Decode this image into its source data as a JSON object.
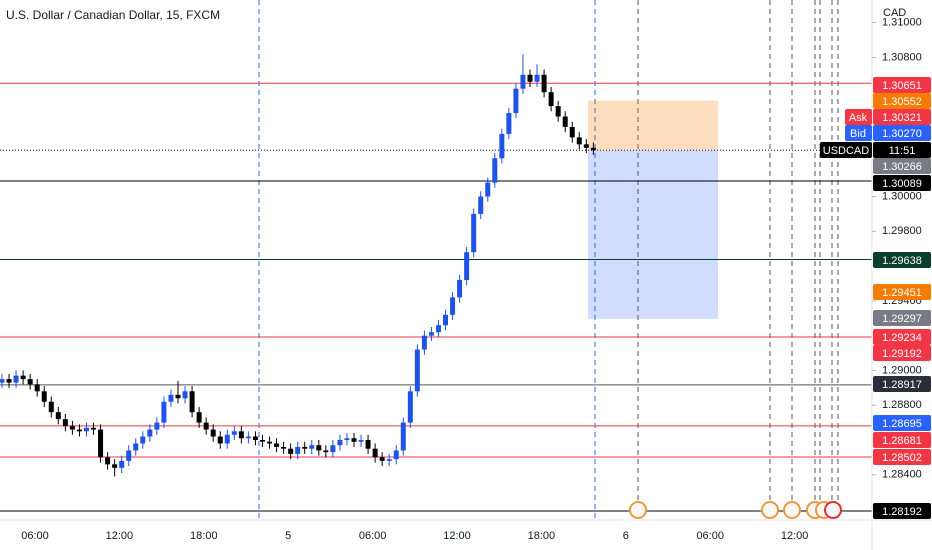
{
  "chart_data": {
    "type": "candlestick",
    "title": "U.S. Dollar / Canadian Dollar, 15, FXCM",
    "currency": "CAD",
    "up_color": "#1e53e5",
    "down_color": "#000000",
    "ylim": [
      1.2814,
      1.3113
    ],
    "yticks": [
      {
        "value": 1.31,
        "label": "1.31000"
      },
      {
        "value": 1.308,
        "label": "1.30800"
      },
      {
        "value": 1.3,
        "label": "1.30000"
      },
      {
        "value": 1.298,
        "label": "1.29800"
      },
      {
        "value": 1.294,
        "label": "1.29400"
      },
      {
        "value": 1.29,
        "label": "1.29000"
      },
      {
        "value": 1.288,
        "label": "1.28800"
      },
      {
        "value": 1.284,
        "label": "1.28400"
      }
    ],
    "xlabels": [
      "06:00",
      "12:00",
      "18:00",
      "5",
      "06:00",
      "12:00",
      "18:00",
      "6",
      "06:00",
      "12:00"
    ],
    "open": [
      1.2893,
      1.2895,
      1.2893,
      1.2897,
      1.2895,
      1.2892,
      1.2888,
      1.2882,
      1.2876,
      1.2872,
      1.2868,
      1.2866,
      1.2865,
      1.2867,
      1.2866,
      1.285,
      1.2846,
      1.2844,
      1.2848,
      1.2854,
      1.2858,
      1.2862,
      1.2866,
      1.287,
      1.2882,
      1.2886,
      1.2884,
      1.2888,
      1.2876,
      1.287,
      1.2866,
      1.2862,
      1.2858,
      1.2863,
      1.2865,
      1.2861,
      1.2862,
      1.286,
      1.2859,
      1.2858,
      1.2856,
      1.2855,
      1.2852,
      1.2856,
      1.2855,
      1.2857,
      1.2854,
      1.2853,
      1.2857,
      1.286,
      1.2861,
      1.2859,
      1.286,
      1.2855,
      1.285,
      1.2848,
      1.2849,
      1.2854,
      1.287,
      1.2888,
      1.2912,
      1.292,
      1.2922,
      1.2926,
      1.2932,
      1.2942,
      1.2952,
      1.2968,
      1.299,
      1.3,
      1.3008,
      1.3022,
      1.3036,
      1.3048,
      1.3062,
      1.307,
      1.3066,
      1.307,
      1.306,
      1.3052,
      1.3046,
      1.304,
      1.3034,
      1.303,
      1.3028
    ],
    "high": [
      1.2898,
      1.2898,
      1.29,
      1.29,
      1.2898,
      1.2895,
      1.2891,
      1.2885,
      1.2879,
      1.2875,
      1.2871,
      1.2869,
      1.287,
      1.287,
      1.2869,
      1.2853,
      1.2849,
      1.2851,
      1.2857,
      1.2861,
      1.2865,
      1.2869,
      1.2873,
      1.2885,
      1.2889,
      1.2894,
      1.2891,
      1.2891,
      1.2879,
      1.2873,
      1.2869,
      1.2865,
      1.2866,
      1.2868,
      1.2868,
      1.2865,
      1.2865,
      1.2863,
      1.2862,
      1.2861,
      1.2859,
      1.2858,
      1.2859,
      1.2859,
      1.286,
      1.286,
      1.2857,
      1.286,
      1.2863,
      1.2864,
      1.2864,
      1.2863,
      1.2863,
      1.2858,
      1.2853,
      1.2852,
      1.2857,
      1.2873,
      1.2891,
      1.2915,
      1.2923,
      1.2925,
      1.2929,
      1.2935,
      1.2945,
      1.2955,
      1.2971,
      1.2993,
      1.3003,
      1.3011,
      1.3025,
      1.3039,
      1.3051,
      1.3065,
      1.3082,
      1.3073,
      1.3076,
      1.3073,
      1.3063,
      1.3055,
      1.3049,
      1.3043,
      1.3037,
      1.3033,
      1.3031
    ],
    "low": [
      1.289,
      1.289,
      1.289,
      1.2892,
      1.2889,
      1.2885,
      1.2879,
      1.2873,
      1.2869,
      1.2865,
      1.2863,
      1.2862,
      1.2862,
      1.2863,
      1.2847,
      1.2843,
      1.2839,
      1.2841,
      1.2845,
      1.2851,
      1.2855,
      1.2859,
      1.2863,
      1.2867,
      1.2879,
      1.2881,
      1.2881,
      1.2873,
      1.2867,
      1.2863,
      1.2859,
      1.2855,
      1.2855,
      1.286,
      1.2858,
      1.2858,
      1.2857,
      1.2856,
      1.2855,
      1.2853,
      1.2852,
      1.2849,
      1.2849,
      1.2852,
      1.2852,
      1.2851,
      1.285,
      1.285,
      1.2854,
      1.2857,
      1.2856,
      1.2856,
      1.2852,
      1.2847,
      1.2845,
      1.2845,
      1.2846,
      1.2851,
      1.2867,
      1.2885,
      1.2909,
      1.2917,
      1.2919,
      1.2923,
      1.2929,
      1.2939,
      1.2949,
      1.2965,
      1.2987,
      1.2997,
      1.3005,
      1.3019,
      1.3033,
      1.3045,
      1.3059,
      1.3063,
      1.3063,
      1.3057,
      1.3049,
      1.3043,
      1.3037,
      1.3031,
      1.3027,
      1.3025,
      1.3024
    ],
    "close": [
      1.2895,
      1.2893,
      1.2897,
      1.2895,
      1.2892,
      1.2888,
      1.2882,
      1.2876,
      1.2872,
      1.2868,
      1.2866,
      1.2865,
      1.2867,
      1.2866,
      1.285,
      1.2846,
      1.2844,
      1.2848,
      1.2854,
      1.2858,
      1.2862,
      1.2866,
      1.287,
      1.2882,
      1.2886,
      1.2884,
      1.2888,
      1.2876,
      1.287,
      1.2866,
      1.2862,
      1.2858,
      1.2863,
      1.2865,
      1.2861,
      1.2862,
      1.286,
      1.2859,
      1.2858,
      1.2856,
      1.2855,
      1.2852,
      1.2856,
      1.2855,
      1.2857,
      1.2854,
      1.2853,
      1.2857,
      1.286,
      1.2861,
      1.2859,
      1.286,
      1.2855,
      1.285,
      1.2848,
      1.2849,
      1.2854,
      1.287,
      1.2888,
      1.2912,
      1.292,
      1.2922,
      1.2926,
      1.2932,
      1.2942,
      1.2952,
      1.2968,
      1.299,
      1.3,
      1.3008,
      1.3022,
      1.3036,
      1.3048,
      1.3062,
      1.307,
      1.3066,
      1.307,
      1.306,
      1.3052,
      1.3046,
      1.304,
      1.3034,
      1.303,
      1.3028,
      1.30266
    ],
    "lines": [
      {
        "value": 1.30651,
        "color": "#f23645"
      },
      {
        "value": 1.30089,
        "color": "#000000"
      },
      {
        "value": 1.29638,
        "color": "#0b3d2c"
      },
      {
        "value": 1.29192,
        "color": "#f23645"
      },
      {
        "value": 1.28917,
        "color": "#555555"
      },
      {
        "value": 1.28681,
        "color": "#f23645"
      },
      {
        "value": 1.28502,
        "color": "#f23645"
      },
      {
        "value": 1.28192,
        "color": "#000000"
      }
    ],
    "position": {
      "entry": 1.30266,
      "target": 1.30552,
      "stop": 1.29297
    },
    "countdown_tag": {
      "symbol": "USDCAD",
      "time": "11:51"
    },
    "tags": [
      {
        "value": 1.30651,
        "color": "#f23645"
      },
      {
        "value": 1.30552,
        "color": "#f57c00"
      },
      {
        "value": 1.30321,
        "color": "#f23645",
        "prefix": "Ask"
      },
      {
        "value": 1.3027,
        "label": "1.30270",
        "color": "#2962ff",
        "prefix": "Bid"
      },
      {
        "value": 1.30266,
        "color": "#787b86"
      },
      {
        "value": 1.30089,
        "color": "#000000"
      },
      {
        "value": 1.29638,
        "color": "#0b3d2c"
      },
      {
        "value": 1.29451,
        "color": "#f57c00"
      },
      {
        "value": 1.29297,
        "color": "#787b86"
      },
      {
        "value": 1.29234,
        "color": "#f23645"
      },
      {
        "value": 1.29192,
        "color": "#f23645"
      },
      {
        "value": 1.28917,
        "color": "#2a2e39"
      },
      {
        "value": 1.28695,
        "color": "#2962ff"
      },
      {
        "value": 1.28681,
        "color": "#f23645"
      },
      {
        "value": 1.28502,
        "color": "#f23645"
      },
      {
        "value": 1.28192,
        "color": "#000000"
      }
    ]
  }
}
